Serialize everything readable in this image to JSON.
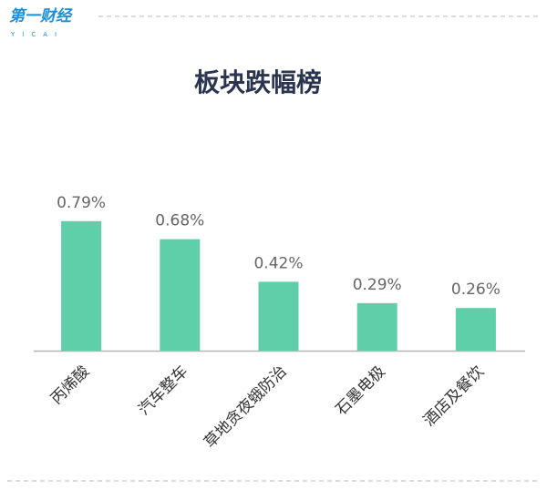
{
  "logo": "第一财经",
  "logo_sub": "YICAI",
  "chart_data": {
    "type": "bar",
    "title": "板块跌幅榜",
    "categories": [
      "丙烯酸",
      "汽车整车",
      "草地贪夜蛾防治",
      "石墨电极",
      "酒店及餐饮"
    ],
    "values": [
      0.79,
      0.68,
      0.42,
      0.29,
      0.26
    ],
    "value_labels": [
      "0.79%",
      "0.68%",
      "0.42%",
      "0.29%",
      "0.26%"
    ],
    "color": "#5ecfa8"
  }
}
